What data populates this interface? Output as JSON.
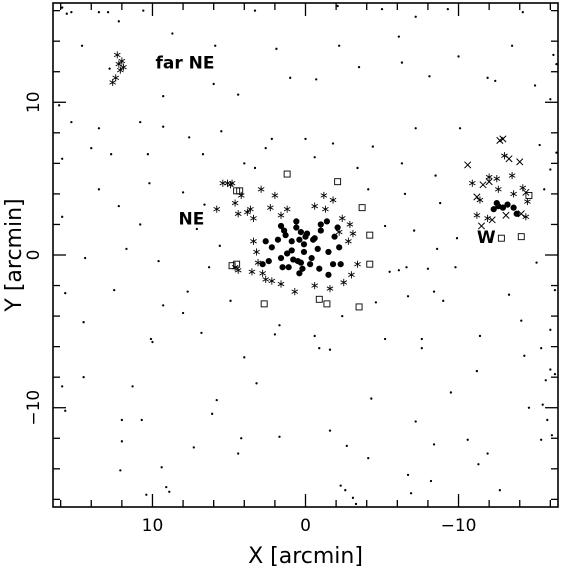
{
  "chart_data": {
    "type": "scatter",
    "xlabel": "X [arcmin]",
    "ylabel": "Y [arcmin]",
    "xlim": [
      16.5,
      -16.5
    ],
    "ylim": [
      -16.5,
      16.5
    ],
    "xticks": [
      10,
      0,
      -10
    ],
    "yticks": [
      10,
      0,
      -10
    ],
    "tick_labels_x": [
      "10",
      "0",
      "−10"
    ],
    "tick_labels_y": [
      "10",
      "0",
      "−10"
    ],
    "grid": false,
    "annotations": [
      {
        "text": "far NE",
        "x": 9.8,
        "y": 12.2
      },
      {
        "text": "NE",
        "x": 8.3,
        "y": 2.0
      },
      {
        "text": "W",
        "x": -11.2,
        "y": 0.8
      }
    ],
    "series": [
      {
        "marker": "filled-circle",
        "points": [
          [
            0.3,
            1.5
          ],
          [
            0.6,
            1.8
          ],
          [
            -0.1,
            1.4
          ],
          [
            0.1,
            0.7
          ],
          [
            -0.5,
            1.0
          ],
          [
            -1.0,
            1.6
          ],
          [
            -1.4,
            2.2
          ],
          [
            -1.9,
            1.2
          ],
          [
            -2.2,
            0.5
          ],
          [
            -1.5,
            0.2
          ],
          [
            -0.8,
            0.4
          ],
          [
            0.5,
            -0.4
          ],
          [
            0.9,
            0.9
          ],
          [
            1.3,
            1.3
          ],
          [
            1.8,
            1.0
          ],
          [
            2.2,
            0.5
          ],
          [
            1.6,
            -0.2
          ],
          [
            1.1,
            -0.8
          ],
          [
            0.4,
            -1.2
          ],
          [
            -0.3,
            -0.6
          ],
          [
            -0.9,
            -0.9
          ],
          [
            -1.5,
            -1.3
          ],
          [
            -2.3,
            -0.6
          ],
          [
            -2.1,
            1.8
          ],
          [
            -1.0,
            2.0
          ],
          [
            1.4,
            1.6
          ],
          [
            2.6,
            0.9
          ],
          [
            2.4,
            -0.4
          ],
          [
            0.1,
            0.2
          ],
          [
            0.8,
            -0.3
          ],
          [
            1.5,
            -0.8
          ],
          [
            0.2,
            -0.9
          ],
          [
            -0.6,
            1.1
          ],
          [
            -1.8,
            -0.6
          ],
          [
            0.9,
            0.3
          ],
          [
            1.2,
            0.1
          ],
          [
            0.6,
            2.2
          ],
          [
            -0.4,
            -0.2
          ],
          [
            0.0,
            1.2
          ],
          [
            0.3,
            -0.5
          ],
          [
            2.8,
            -0.6
          ],
          [
            1.6,
            1.9
          ],
          [
            -12.3,
            3.0
          ],
          [
            -12.6,
            3.2
          ],
          [
            -12.9,
            3.1
          ],
          [
            -13.2,
            3.3
          ],
          [
            -13.6,
            3.1
          ],
          [
            -13.8,
            2.7
          ],
          [
            -12.5,
            3.4
          ],
          [
            0.4,
            1.0
          ]
        ]
      },
      {
        "marker": "asterisk",
        "points": [
          [
            12.3,
            13.1
          ],
          [
            12.0,
            12.7
          ],
          [
            11.9,
            12.3
          ],
          [
            12.2,
            12.5
          ],
          [
            12.4,
            11.6
          ],
          [
            12.6,
            11.3
          ],
          [
            12.1,
            12.1
          ],
          [
            5.4,
            4.7
          ],
          [
            5.1,
            4.7
          ],
          [
            4.8,
            4.7
          ],
          [
            4.9,
            4.6
          ],
          [
            5.8,
            3.0
          ],
          [
            4.6,
            3.4
          ],
          [
            4.2,
            3.9
          ],
          [
            4.4,
            2.7
          ],
          [
            3.8,
            2.8
          ],
          [
            3.6,
            3.0
          ],
          [
            3.4,
            2.4
          ],
          [
            2.9,
            4.3
          ],
          [
            2.0,
            3.9
          ],
          [
            1.2,
            3.0
          ],
          [
            -0.6,
            3.2
          ],
          [
            -1.2,
            3.9
          ],
          [
            -1.8,
            3.6
          ],
          [
            -2.4,
            2.4
          ],
          [
            -2.9,
            2.0
          ],
          [
            -3.1,
            1.4
          ],
          [
            -2.8,
            0.9
          ],
          [
            -3.4,
            -0.6
          ],
          [
            -3.0,
            -1.3
          ],
          [
            -2.5,
            -1.8
          ],
          [
            -1.6,
            -2.2
          ],
          [
            -0.6,
            -2.0
          ],
          [
            0.7,
            -2.4
          ],
          [
            1.6,
            -1.9
          ],
          [
            2.2,
            -1.7
          ],
          [
            2.8,
            -1.2
          ],
          [
            3.1,
            -0.5
          ],
          [
            3.2,
            0.2
          ],
          [
            3.4,
            0.9
          ],
          [
            3.5,
            -1.1
          ],
          [
            2.6,
            -1.6
          ],
          [
            4.6,
            -0.8
          ],
          [
            4.4,
            -1.0
          ],
          [
            2.3,
            3.1
          ],
          [
            1.6,
            2.6
          ],
          [
            -1.3,
            3.0
          ],
          [
            -2.2,
            1.5
          ],
          [
            -10.9,
            4.7
          ],
          [
            -12.0,
            5.1
          ],
          [
            -13.5,
            5.2
          ],
          [
            -14.2,
            4.4
          ],
          [
            -14.5,
            3.5
          ],
          [
            -13.0,
            6.5
          ],
          [
            -11.4,
            3.6
          ],
          [
            -11.2,
            2.6
          ],
          [
            -14.4,
            2.5
          ],
          [
            -13.6,
            4.0
          ],
          [
            -12.6,
            4.3
          ],
          [
            -12.5,
            5.0
          ],
          [
            -11.9,
            2.4
          ]
        ]
      },
      {
        "marker": "cross",
        "points": [
          [
            -12.7,
            7.5
          ],
          [
            -12.9,
            7.6
          ],
          [
            -13.3,
            6.3
          ],
          [
            -14.0,
            6.1
          ],
          [
            -10.6,
            5.9
          ],
          [
            -11.6,
            4.6
          ],
          [
            -11.2,
            3.8
          ],
          [
            -12.0,
            4.8
          ],
          [
            -13.1,
            2.6
          ],
          [
            -14.1,
            2.7
          ],
          [
            -14.4,
            4.1
          ],
          [
            -12.2,
            2.3
          ],
          [
            -11.5,
            1.9
          ]
        ]
      },
      {
        "marker": "open-square",
        "points": [
          [
            4.3,
            4.2
          ],
          [
            4.5,
            4.2
          ],
          [
            1.2,
            5.3
          ],
          [
            -2.1,
            4.8
          ],
          [
            -3.7,
            3.1
          ],
          [
            -4.2,
            1.3
          ],
          [
            -4.2,
            -0.6
          ],
          [
            -3.5,
            -3.4
          ],
          [
            -1.4,
            -3.2
          ],
          [
            -0.9,
            -2.9
          ],
          [
            2.7,
            -3.2
          ],
          [
            4.5,
            -0.6
          ],
          [
            4.8,
            -0.7
          ],
          [
            -14.6,
            3.9
          ],
          [
            -14.1,
            1.2
          ],
          [
            -12.8,
            1.1
          ]
        ]
      },
      {
        "marker": "small-dot",
        "points": [
          [
            15.9,
            16.2
          ],
          [
            15.6,
            15.8
          ],
          [
            15.3,
            15.9
          ],
          [
            13.5,
            15.9
          ],
          [
            12.2,
            15.3
          ],
          [
            12.9,
            15.9
          ],
          [
            10.6,
            16.0
          ],
          [
            3.3,
            16.0
          ],
          [
            -2.1,
            16.3
          ],
          [
            -5.0,
            16.1
          ],
          [
            -7.2,
            15.6
          ],
          [
            -9.3,
            16.1
          ],
          [
            -14.2,
            15.9
          ],
          [
            14.6,
            13.7
          ],
          [
            8.7,
            14.5
          ],
          [
            5.9,
            13.7
          ],
          [
            1.9,
            13.5
          ],
          [
            -2.2,
            13.7
          ],
          [
            -6.1,
            14.3
          ],
          [
            -10.0,
            13.0
          ],
          [
            -13.5,
            13.7
          ],
          [
            -16.2,
            13.1
          ],
          [
            -16.4,
            12.5
          ],
          [
            12.8,
            12.2
          ],
          [
            9.3,
            10.4
          ],
          [
            6.0,
            11.2
          ],
          [
            4.4,
            10.5
          ],
          [
            1.0,
            11.6
          ],
          [
            -0.7,
            11.5
          ],
          [
            -3.5,
            12.3
          ],
          [
            -6.3,
            12.6
          ],
          [
            -8.1,
            11.7
          ],
          [
            -11.9,
            11.6
          ],
          [
            -12.4,
            11.4
          ],
          [
            -15.0,
            11.1
          ],
          [
            -16.0,
            10.2
          ],
          [
            16.1,
            9.8
          ],
          [
            15.3,
            8.7
          ],
          [
            13.5,
            8.3
          ],
          [
            10.8,
            8.7
          ],
          [
            9.3,
            8.4
          ],
          [
            7.6,
            7.7
          ],
          [
            5.5,
            8.1
          ],
          [
            2.2,
            7.6
          ],
          [
            0.0,
            7.6
          ],
          [
            -1.8,
            7.3
          ],
          [
            -4.4,
            7.1
          ],
          [
            -7.2,
            8.3
          ],
          [
            -10.1,
            8.3
          ],
          [
            -15.3,
            7.2
          ],
          [
            -16.4,
            6.7
          ],
          [
            15.9,
            6.3
          ],
          [
            14.0,
            7.0
          ],
          [
            12.7,
            6.6
          ],
          [
            10.3,
            6.6
          ],
          [
            6.7,
            6.6
          ],
          [
            4.0,
            6.0
          ],
          [
            2.6,
            7.0
          ],
          [
            -0.6,
            6.4
          ],
          [
            -3.4,
            5.7
          ],
          [
            -6.3,
            6.0
          ],
          [
            -8.5,
            5.2
          ],
          [
            -16.0,
            5.6
          ],
          [
            13.5,
            4.3
          ],
          [
            10.2,
            4.7
          ],
          [
            8.0,
            4.1
          ],
          [
            6.6,
            3.3
          ],
          [
            3.3,
            5.7
          ],
          [
            -4.1,
            4.3
          ],
          [
            -6.5,
            4.0
          ],
          [
            -8.8,
            3.4
          ],
          [
            -15.6,
            4.3
          ],
          [
            15.9,
            2.5
          ],
          [
            12.2,
            3.2
          ],
          [
            10.8,
            2.0
          ],
          [
            7.1,
            1.7
          ],
          [
            5.6,
            0.6
          ],
          [
            -5.2,
            1.9
          ],
          [
            -7.1,
            1.6
          ],
          [
            -8.6,
            0.4
          ],
          [
            -9.9,
            1.1
          ],
          [
            14.4,
            -0.2
          ],
          [
            11.7,
            0.4
          ],
          [
            9.6,
            -0.4
          ],
          [
            6.3,
            -0.8
          ],
          [
            -5.5,
            -1.1
          ],
          [
            -6.1,
            -1.0
          ],
          [
            -6.6,
            -0.8
          ],
          [
            -8.0,
            -0.9
          ],
          [
            -9.8,
            -0.8
          ],
          [
            -15.1,
            -0.5
          ],
          [
            15.7,
            -2.5
          ],
          [
            12.5,
            -2.3
          ],
          [
            7.7,
            -2.4
          ],
          [
            4.9,
            -3.0
          ],
          [
            1.7,
            -4.6
          ],
          [
            -2.4,
            -4.0
          ],
          [
            -4.6,
            -3.1
          ],
          [
            -6.7,
            -2.7
          ],
          [
            -8.4,
            -2.4
          ],
          [
            -9.0,
            -3.0
          ],
          [
            -13.3,
            -2.6
          ],
          [
            -16.3,
            -2.3
          ],
          [
            14.5,
            -4.4
          ],
          [
            9.3,
            -3.3
          ],
          [
            8.0,
            -3.8
          ],
          [
            2.0,
            -5.2
          ],
          [
            -0.6,
            -5.3
          ],
          [
            -1.6,
            -6.2
          ],
          [
            -5.2,
            -5.5
          ],
          [
            -7.6,
            -5.5
          ],
          [
            -11.4,
            -5.3
          ],
          [
            -14.1,
            -4.3
          ],
          [
            -16.0,
            -4.9
          ],
          [
            10.1,
            -5.5
          ],
          [
            10.0,
            -5.7
          ],
          [
            6.8,
            -5.1
          ],
          [
            4.0,
            -6.7
          ],
          [
            -0.9,
            -6.1
          ],
          [
            -7.6,
            -6.1
          ],
          [
            -14.3,
            -6.6
          ],
          [
            -15.4,
            -6.1
          ],
          [
            15.9,
            -8.6
          ],
          [
            14.5,
            -8.0
          ],
          [
            11.3,
            -8.6
          ],
          [
            5.8,
            -9.5
          ],
          [
            3.2,
            -8.4
          ],
          [
            -4.3,
            -9.4
          ],
          [
            -9.5,
            -9.0
          ],
          [
            -11.2,
            -7.6
          ],
          [
            -16.0,
            -7.5
          ],
          [
            -16.3,
            -7.8
          ],
          [
            -15.7,
            -8.2
          ],
          [
            15.7,
            -10.2
          ],
          [
            12.0,
            -10.8
          ],
          [
            10.7,
            -10.8
          ],
          [
            6.1,
            -10.4
          ],
          [
            4.2,
            -12.0
          ],
          [
            1.7,
            -11.9
          ],
          [
            -1.6,
            -11.5
          ],
          [
            -2.7,
            -12.5
          ],
          [
            -7.2,
            -10.9
          ],
          [
            -8.4,
            -12.4
          ],
          [
            -10.6,
            -12.1
          ],
          [
            -14.6,
            -10.0
          ],
          [
            -15.5,
            -9.8
          ],
          [
            -15.8,
            -10.8
          ],
          [
            12.0,
            -12.2
          ],
          [
            9.4,
            -13.9
          ],
          [
            7.3,
            -12.6
          ],
          [
            4.4,
            -13.0
          ],
          [
            -4.1,
            -13.3
          ],
          [
            -6.7,
            -14.4
          ],
          [
            -11.3,
            -13.7
          ],
          [
            -11.9,
            -13.0
          ],
          [
            -15.4,
            -12.1
          ],
          [
            -16.1,
            -11.8
          ],
          [
            12.1,
            -14.1
          ],
          [
            10.4,
            -15.7
          ],
          [
            9.1,
            -15.2
          ],
          [
            8.9,
            -15.5
          ],
          [
            -2.3,
            -15.1
          ],
          [
            -2.6,
            -15.4
          ],
          [
            -3.1,
            -15.9
          ],
          [
            -3.3,
            -16.3
          ],
          [
            -8.2,
            -14.8
          ],
          [
            -6.9,
            -15.6
          ],
          [
            -12.7,
            -15.4
          ]
        ]
      }
    ]
  }
}
